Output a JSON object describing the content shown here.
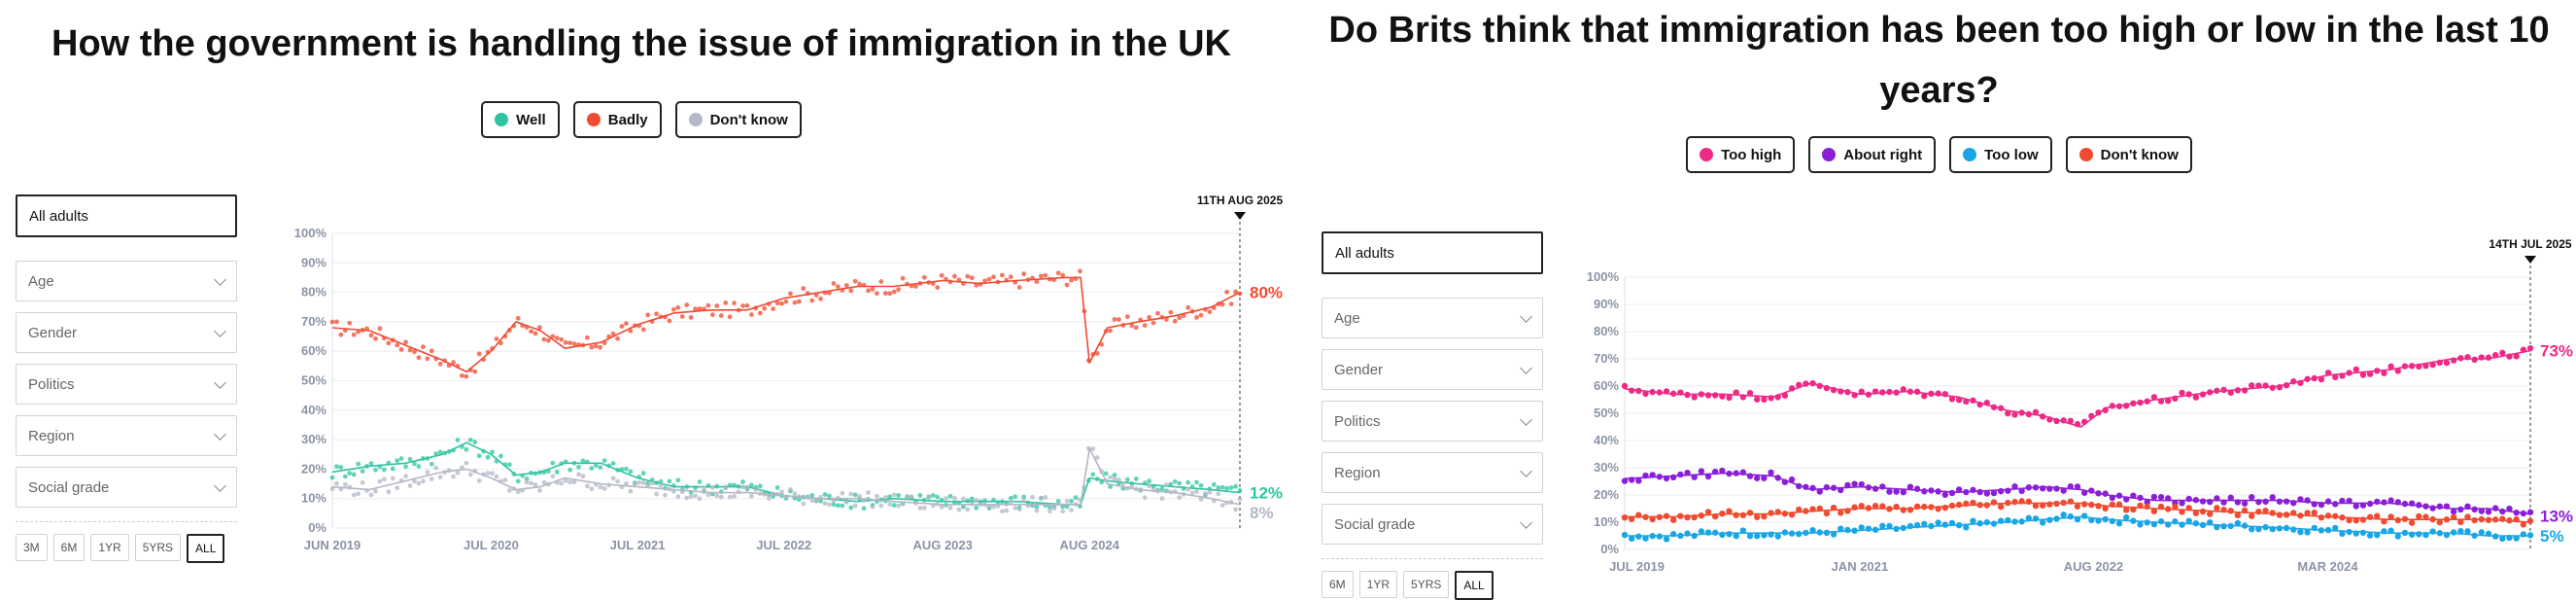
{
  "left": {
    "title": "How the government is handling the issue of immigration in the UK",
    "legend": [
      {
        "label": "Well",
        "color": "#2ec4a0"
      },
      {
        "label": "Badly",
        "color": "#f04a30"
      },
      {
        "label": "Don't know",
        "color": "#b3b7c6"
      }
    ],
    "filters": {
      "main": "All adults",
      "selects": [
        "Age",
        "Gender",
        "Politics",
        "Region",
        "Social grade"
      ]
    },
    "ranges": [
      "3M",
      "6M",
      "1YR",
      "5YRS",
      "ALL"
    ],
    "active_range": "ALL"
  },
  "right": {
    "title": "Do Brits think that immigration has been too high or low in the last 10 years?",
    "legend": [
      {
        "label": "Too high",
        "color": "#ee2a86"
      },
      {
        "label": "About right",
        "color": "#8b1fd8"
      },
      {
        "label": "Too low",
        "color": "#1aa6e6"
      },
      {
        "label": "Don't know",
        "color": "#f04a30"
      }
    ],
    "filters": {
      "main": "All adults",
      "selects": [
        "Age",
        "Gender",
        "Politics",
        "Region",
        "Social grade"
      ]
    },
    "ranges": [
      "6M",
      "1YR",
      "5YRS",
      "ALL"
    ],
    "active_range": "ALL"
  },
  "chart_data": [
    {
      "type": "line",
      "title": "How the government is handling the issue of immigration in the UK",
      "ylim": [
        0,
        100
      ],
      "yticks": [
        "0%",
        "10%",
        "20%",
        "30%",
        "40%",
        "50%",
        "60%",
        "70%",
        "80%",
        "90%",
        "100%"
      ],
      "xlim": [
        "2019-06-01",
        "2025-08-11"
      ],
      "xticks": [
        {
          "date": "2019-06-01",
          "label": "JUN 2019"
        },
        {
          "date": "2020-07-01",
          "label": "JUL 2020"
        },
        {
          "date": "2021-07-01",
          "label": "JUL 2021"
        },
        {
          "date": "2022-07-01",
          "label": "JUL 2022"
        },
        {
          "date": "2023-08-01",
          "label": "AUG 2023"
        },
        {
          "date": "2024-08-01",
          "label": "AUG 2024"
        }
      ],
      "marker": {
        "date": "2025-08-11",
        "label": "11TH AUG 2025"
      },
      "series": [
        {
          "name": "Badly",
          "color": "#f04a30",
          "end_label": "80%",
          "points": [
            [
              "2019-06-01",
              68
            ],
            [
              "2019-09-01",
              67
            ],
            [
              "2019-12-01",
              62
            ],
            [
              "2020-03-01",
              57
            ],
            [
              "2020-05-01",
              53
            ],
            [
              "2020-07-01",
              60
            ],
            [
              "2020-09-01",
              70
            ],
            [
              "2020-11-01",
              67
            ],
            [
              "2021-01-01",
              61
            ],
            [
              "2021-04-01",
              63
            ],
            [
              "2021-07-01",
              69
            ],
            [
              "2021-10-01",
              73
            ],
            [
              "2022-01-01",
              74
            ],
            [
              "2022-04-01",
              74
            ],
            [
              "2022-07-01",
              78
            ],
            [
              "2022-10-01",
              80
            ],
            [
              "2023-01-01",
              82
            ],
            [
              "2023-04-01",
              82
            ],
            [
              "2023-08-01",
              84
            ],
            [
              "2023-11-01",
              83
            ],
            [
              "2024-02-01",
              84
            ],
            [
              "2024-06-01",
              85
            ],
            [
              "2024-07-10",
              85
            ],
            [
              "2024-08-01",
              56
            ],
            [
              "2024-09-15",
              68
            ],
            [
              "2024-12-01",
              70
            ],
            [
              "2025-03-01",
              72
            ],
            [
              "2025-06-01",
              75
            ],
            [
              "2025-08-11",
              80
            ]
          ]
        },
        {
          "name": "Well",
          "color": "#2ec4a0",
          "end_label": "12%",
          "points": [
            [
              "2019-06-01",
              19
            ],
            [
              "2019-09-01",
              21
            ],
            [
              "2019-12-01",
              22
            ],
            [
              "2020-03-01",
              25
            ],
            [
              "2020-05-01",
              29
            ],
            [
              "2020-07-01",
              25
            ],
            [
              "2020-09-01",
              18
            ],
            [
              "2020-11-01",
              19
            ],
            [
              "2021-01-01",
              22
            ],
            [
              "2021-04-01",
              22
            ],
            [
              "2021-07-01",
              17
            ],
            [
              "2021-10-01",
              14
            ],
            [
              "2022-01-01",
              14
            ],
            [
              "2022-04-01",
              14
            ],
            [
              "2022-07-01",
              11
            ],
            [
              "2022-10-01",
              10
            ],
            [
              "2023-01-01",
              9
            ],
            [
              "2023-04-01",
              10
            ],
            [
              "2023-08-01",
              9
            ],
            [
              "2023-11-01",
              9
            ],
            [
              "2024-02-01",
              9
            ],
            [
              "2024-06-01",
              8
            ],
            [
              "2024-07-10",
              8
            ],
            [
              "2024-08-01",
              17
            ],
            [
              "2024-09-15",
              16
            ],
            [
              "2024-12-01",
              15
            ],
            [
              "2025-03-01",
              14
            ],
            [
              "2025-06-01",
              13
            ],
            [
              "2025-08-11",
              12
            ]
          ]
        },
        {
          "name": "Don't know",
          "color": "#b3b7c6",
          "end_label": "8%",
          "points": [
            [
              "2019-06-01",
              14
            ],
            [
              "2019-09-01",
              13
            ],
            [
              "2019-12-01",
              16
            ],
            [
              "2020-03-01",
              19
            ],
            [
              "2020-05-01",
              20
            ],
            [
              "2020-07-01",
              17
            ],
            [
              "2020-09-01",
              13
            ],
            [
              "2020-11-01",
              14
            ],
            [
              "2021-01-01",
              17
            ],
            [
              "2021-04-01",
              15
            ],
            [
              "2021-07-01",
              14
            ],
            [
              "2021-10-01",
              13
            ],
            [
              "2022-01-01",
              12
            ],
            [
              "2022-04-01",
              12
            ],
            [
              "2022-07-01",
              11
            ],
            [
              "2022-10-01",
              10
            ],
            [
              "2023-01-01",
              10
            ],
            [
              "2023-04-01",
              9
            ],
            [
              "2023-08-01",
              8
            ],
            [
              "2023-11-01",
              8
            ],
            [
              "2024-02-01",
              8
            ],
            [
              "2024-06-01",
              8
            ],
            [
              "2024-07-10",
              8
            ],
            [
              "2024-08-01",
              27
            ],
            [
              "2024-09-15",
              15
            ],
            [
              "2024-12-01",
              13
            ],
            [
              "2025-03-01",
              12
            ],
            [
              "2025-06-01",
              10
            ],
            [
              "2025-08-11",
              8
            ]
          ]
        }
      ]
    },
    {
      "type": "line",
      "title": "Do Brits think that immigration has been too high or low in the last 10 years?",
      "ylim": [
        0,
        100
      ],
      "yticks": [
        "0%",
        "10%",
        "20%",
        "30%",
        "40%",
        "50%",
        "60%",
        "70%",
        "80%",
        "90%",
        "100%"
      ],
      "xlim": [
        "2019-06-01",
        "2025-07-14"
      ],
      "xticks": [
        {
          "date": "2019-07-01",
          "label": "JUL 2019"
        },
        {
          "date": "2021-01-01",
          "label": "JAN 2021"
        },
        {
          "date": "2022-08-01",
          "label": "AUG 2022"
        },
        {
          "date": "2024-03-01",
          "label": "MAR 2024"
        }
      ],
      "marker": {
        "date": "2025-07-14",
        "label": "14TH JUL 2025"
      },
      "series": [
        {
          "name": "Too high",
          "color": "#ee2a86",
          "end_label": "73%",
          "points": [
            [
              "2019-06-01",
              59
            ],
            [
              "2019-10-01",
              57
            ],
            [
              "2020-02-01",
              57
            ],
            [
              "2020-06-01",
              56
            ],
            [
              "2020-09-01",
              61
            ],
            [
              "2021-01-01",
              57
            ],
            [
              "2021-05-01",
              58
            ],
            [
              "2021-09-01",
              56
            ],
            [
              "2022-01-01",
              51
            ],
            [
              "2022-04-01",
              49
            ],
            [
              "2022-07-01",
              45
            ],
            [
              "2022-09-01",
              52
            ],
            [
              "2023-01-01",
              55
            ],
            [
              "2023-06-01",
              58
            ],
            [
              "2023-11-01",
              60
            ],
            [
              "2024-03-01",
              64
            ],
            [
              "2024-08-01",
              66
            ],
            [
              "2025-01-01",
              70
            ],
            [
              "2025-04-01",
              70
            ],
            [
              "2025-07-14",
              73
            ]
          ]
        },
        {
          "name": "About right",
          "color": "#8b1fd8",
          "end_label": "13%",
          "points": [
            [
              "2019-06-01",
              26
            ],
            [
              "2019-10-01",
              27
            ],
            [
              "2020-02-01",
              28
            ],
            [
              "2020-06-01",
              27
            ],
            [
              "2020-09-01",
              22
            ],
            [
              "2021-01-01",
              23
            ],
            [
              "2021-05-01",
              22
            ],
            [
              "2021-09-01",
              21
            ],
            [
              "2022-01-01",
              22
            ],
            [
              "2022-04-01",
              23
            ],
            [
              "2022-07-01",
              22
            ],
            [
              "2022-09-01",
              20
            ],
            [
              "2023-01-01",
              18
            ],
            [
              "2023-06-01",
              18
            ],
            [
              "2023-11-01",
              18
            ],
            [
              "2024-03-01",
              17
            ],
            [
              "2024-08-01",
              17
            ],
            [
              "2025-01-01",
              15
            ],
            [
              "2025-04-01",
              15
            ],
            [
              "2025-07-14",
              13
            ]
          ]
        },
        {
          "name": "Don't know",
          "color": "#f04a30",
          "end_label": "",
          "points": [
            [
              "2019-06-01",
              12
            ],
            [
              "2019-10-01",
              12
            ],
            [
              "2020-02-01",
              13
            ],
            [
              "2020-06-01",
              13
            ],
            [
              "2020-09-01",
              14
            ],
            [
              "2021-01-01",
              15
            ],
            [
              "2021-05-01",
              15
            ],
            [
              "2021-09-01",
              16
            ],
            [
              "2022-01-01",
              17
            ],
            [
              "2022-04-01",
              17
            ],
            [
              "2022-07-01",
              17
            ],
            [
              "2022-09-01",
              16
            ],
            [
              "2023-01-01",
              15
            ],
            [
              "2023-06-01",
              14
            ],
            [
              "2023-11-01",
              13
            ],
            [
              "2024-03-01",
              12
            ],
            [
              "2024-08-01",
              11
            ],
            [
              "2025-01-01",
              11
            ],
            [
              "2025-04-01",
              11
            ],
            [
              "2025-07-14",
              10
            ]
          ]
        },
        {
          "name": "Too low",
          "color": "#1aa6e6",
          "end_label": "5%",
          "points": [
            [
              "2019-06-01",
              5
            ],
            [
              "2019-10-01",
              5
            ],
            [
              "2020-02-01",
              6
            ],
            [
              "2020-06-01",
              6
            ],
            [
              "2020-09-01",
              6
            ],
            [
              "2021-01-01",
              7
            ],
            [
              "2021-05-01",
              8
            ],
            [
              "2021-09-01",
              9
            ],
            [
              "2022-01-01",
              10
            ],
            [
              "2022-04-01",
              11
            ],
            [
              "2022-07-01",
              12
            ],
            [
              "2022-09-01",
              11
            ],
            [
              "2023-01-01",
              10
            ],
            [
              "2023-06-01",
              9
            ],
            [
              "2023-11-01",
              8
            ],
            [
              "2024-03-01",
              7
            ],
            [
              "2024-08-01",
              6
            ],
            [
              "2025-01-01",
              6
            ],
            [
              "2025-04-01",
              5
            ],
            [
              "2025-07-14",
              5
            ]
          ]
        }
      ]
    }
  ]
}
